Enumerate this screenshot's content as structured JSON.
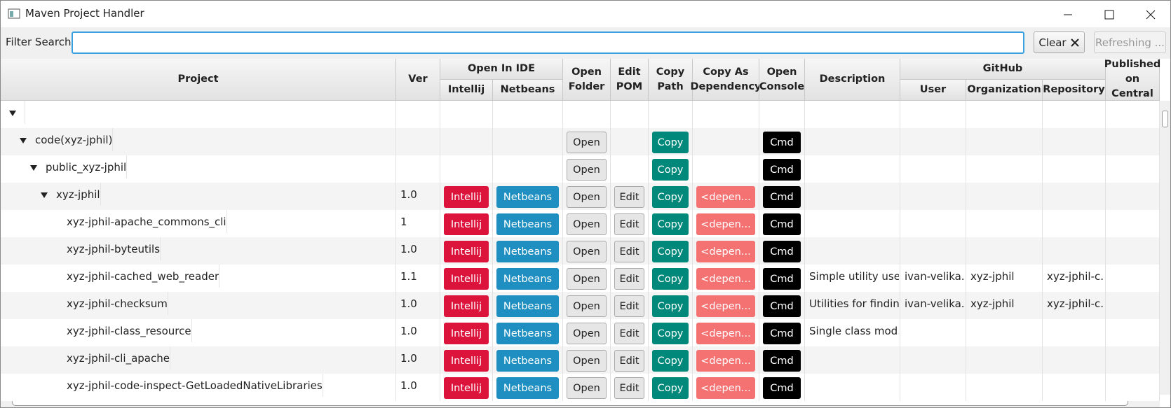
{
  "window": {
    "title": "Maven Project Handler"
  },
  "toolbar": {
    "filter_label": "Filter Search",
    "clear": "Clear",
    "refresh": "Refreshing ..."
  },
  "table": {
    "headers": {
      "project": "Project",
      "ver": "Ver",
      "open_in_ide": "Open In IDE",
      "intellij": "Intellij",
      "netbeans": "Netbeans",
      "open_folder": "Open Folder",
      "edit_pom": "Edit POM",
      "copy_path": "Copy Path",
      "copy_dependency": "Copy As Dependency",
      "open_console": "Open Console",
      "description": "Description",
      "github": "GitHub",
      "user": "User",
      "organization": "Organization",
      "repository": "Repository",
      "published": "Published on Central"
    },
    "tree": {
      "name": "",
      "expanded": true,
      "children": [
        {
          "name": "code(xyz-jphil)",
          "expanded": true,
          "open": "Open",
          "copy": "Copy",
          "cmd": "Cmd",
          "children": [
            {
              "name": "public_xyz-jphil",
              "expanded": true,
              "open": "Open",
              "copy": "Copy",
              "cmd": "Cmd",
              "children": [
                {
                  "name": "xyz-jphil",
                  "expanded": true,
                  "ver": "1.0",
                  "intellij": "Intellij",
                  "netbeans": "Netbeans",
                  "open": "Open",
                  "edit": "Edit",
                  "copy": "Copy",
                  "dependency": "<depen...",
                  "cmd": "Cmd",
                  "children": [
                    {
                      "name": "xyz-jphil-apache_commons_cli",
                      "ver": "1",
                      "intellij": "Intellij",
                      "netbeans": "Netbeans",
                      "open": "Open",
                      "edit": "Edit",
                      "copy": "Copy",
                      "dependency": "<depen...",
                      "cmd": "Cmd"
                    },
                    {
                      "name": "xyz-jphil-byteutils",
                      "ver": "1.0",
                      "intellij": "Intellij",
                      "netbeans": "Netbeans",
                      "open": "Open",
                      "edit": "Edit",
                      "copy": "Copy",
                      "dependency": "<depen...",
                      "cmd": "Cmd"
                    },
                    {
                      "name": "xyz-jphil-cached_web_reader",
                      "ver": "1.1",
                      "intellij": "Intellij",
                      "netbeans": "Netbeans",
                      "open": "Open",
                      "edit": "Edit",
                      "copy": "Copy",
                      "dependency": "<depen...",
                      "cmd": "Cmd",
                      "description": "Simple utility use...",
                      "user": "ivan-velika...",
                      "organization": "xyz-jphil",
                      "repository": "xyz-jphil-c..."
                    },
                    {
                      "name": "xyz-jphil-checksum",
                      "ver": "1.0",
                      "intellij": "Intellij",
                      "netbeans": "Netbeans",
                      "open": "Open",
                      "edit": "Edit",
                      "copy": "Copy",
                      "dependency": "<depen...",
                      "cmd": "Cmd",
                      "description": "Utilities for findin...",
                      "user": "ivan-velika...",
                      "organization": "xyz-jphil",
                      "repository": "xyz-jphil-c..."
                    },
                    {
                      "name": "xyz-jphil-class_resource",
                      "ver": "1.0",
                      "intellij": "Intellij",
                      "netbeans": "Netbeans",
                      "open": "Open",
                      "edit": "Edit",
                      "copy": "Copy",
                      "dependency": "<depen...",
                      "cmd": "Cmd",
                      "description": "Single class mod..."
                    },
                    {
                      "name": "xyz-jphil-cli_apache",
                      "ver": "1.0",
                      "intellij": "Intellij",
                      "netbeans": "Netbeans",
                      "open": "Open",
                      "edit": "Edit",
                      "copy": "Copy",
                      "dependency": "<depen...",
                      "cmd": "Cmd"
                    },
                    {
                      "name": "xyz-jphil-code-inspect-GetLoadedNativeLibraries",
                      "ver": "1.0",
                      "intellij": "Intellij",
                      "netbeans": "Netbeans",
                      "open": "Open",
                      "edit": "Edit",
                      "copy": "Copy",
                      "dependency": "<depen...",
                      "cmd": "Cmd"
                    }
                  ]
                }
              ]
            }
          ]
        }
      ]
    }
  }
}
